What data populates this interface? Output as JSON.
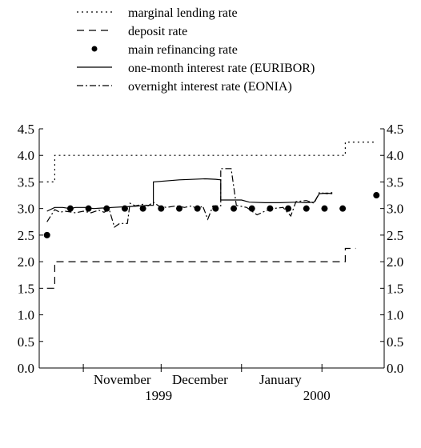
{
  "chart_data": {
    "type": "line",
    "title": "",
    "xlabel": "",
    "ylabel": "",
    "ylim": [
      0,
      4.5
    ],
    "yticks": [
      "0.0",
      "0.5",
      "1.0",
      "1.5",
      "2.0",
      "2.5",
      "3.0",
      "3.5",
      "4.0",
      "4.5"
    ],
    "y_axis_both_sides": true,
    "grid": false,
    "legend_position": "top-left",
    "x_start": "1999-10-15",
    "x_end": "2000-02-25",
    "month_labels": [
      {
        "label": "November",
        "date": "1999-11-16"
      },
      {
        "label": "December",
        "date": "1999-12-16"
      },
      {
        "label": "January",
        "date": "2000-01-16"
      }
    ],
    "month_boundaries": [
      "1999-11-01",
      "1999-12-01",
      "2000-01-01",
      "2000-02-01"
    ],
    "year_labels": [
      {
        "label": "1999",
        "date": "1999-11-30"
      },
      {
        "label": "2000",
        "date": "2000-01-30"
      }
    ],
    "legend": [
      {
        "key": "marginal",
        "label": "marginal lending rate"
      },
      {
        "key": "deposit",
        "label": "deposit rate"
      },
      {
        "key": "mro",
        "label": "main refinancing rate"
      },
      {
        "key": "euribor",
        "label": "one-month interest rate (EURIBOR)"
      },
      {
        "key": "eonia",
        "label": "overnight interest rate (EONIA)"
      }
    ],
    "series": [
      {
        "key": "marginal",
        "style": "dotted",
        "points": [
          [
            "1999-10-18",
            3.5
          ],
          [
            "1999-10-21",
            3.5
          ],
          [
            "1999-10-21",
            4.0
          ],
          [
            "2000-02-10",
            4.0
          ],
          [
            "2000-02-10",
            4.25
          ],
          [
            "2000-02-21",
            4.25
          ]
        ]
      },
      {
        "key": "deposit",
        "style": "dashed",
        "points": [
          [
            "1999-10-18",
            1.5
          ],
          [
            "1999-10-21",
            1.5
          ],
          [
            "1999-10-21",
            2.0
          ],
          [
            "2000-02-10",
            2.0
          ],
          [
            "2000-02-10",
            2.25
          ],
          [
            "2000-02-14",
            2.25
          ]
        ]
      },
      {
        "key": "euribor",
        "style": "solid",
        "points": [
          [
            "1999-10-18",
            2.95
          ],
          [
            "1999-10-21",
            3.02
          ],
          [
            "1999-10-24",
            3.02
          ],
          [
            "1999-10-27",
            3.0
          ],
          [
            "1999-10-29",
            3.02
          ],
          [
            "1999-11-02",
            3.02
          ],
          [
            "1999-11-05",
            3.0
          ],
          [
            "1999-11-12",
            3.02
          ],
          [
            "1999-11-20",
            3.04
          ],
          [
            "1999-11-26",
            3.06
          ],
          [
            "1999-11-28",
            3.06
          ],
          [
            "1999-11-28",
            3.5
          ],
          [
            "1999-12-08",
            3.54
          ],
          [
            "1999-12-18",
            3.56
          ],
          [
            "1999-12-22",
            3.55
          ],
          [
            "1999-12-24",
            3.54
          ],
          [
            "1999-12-24",
            3.16
          ],
          [
            "2000-01-01",
            3.16
          ],
          [
            "2000-01-04",
            3.12
          ],
          [
            "2000-01-10",
            3.11
          ],
          [
            "2000-01-16",
            3.11
          ],
          [
            "2000-01-22",
            3.12
          ],
          [
            "2000-01-26",
            3.11
          ],
          [
            "2000-01-29",
            3.12
          ],
          [
            "2000-01-31",
            3.28
          ],
          [
            "2000-02-03",
            3.29
          ],
          [
            "2000-02-05",
            3.28
          ]
        ]
      },
      {
        "key": "eonia",
        "style": "dashdot",
        "points": [
          [
            "1999-10-18",
            2.75
          ],
          [
            "1999-10-21",
            2.98
          ],
          [
            "1999-10-23",
            2.93
          ],
          [
            "1999-10-25",
            2.95
          ],
          [
            "1999-10-29",
            2.92
          ],
          [
            "1999-11-01",
            2.95
          ],
          [
            "1999-11-04",
            2.92
          ],
          [
            "1999-11-07",
            2.97
          ],
          [
            "1999-11-09",
            2.93
          ],
          [
            "1999-11-11",
            2.98
          ],
          [
            "1999-11-13",
            2.65
          ],
          [
            "1999-11-15",
            2.72
          ],
          [
            "1999-11-18",
            2.72
          ],
          [
            "1999-11-19",
            3.1
          ],
          [
            "1999-11-21",
            3.05
          ],
          [
            "1999-11-24",
            3.08
          ],
          [
            "1999-11-26",
            3.05
          ],
          [
            "1999-11-28",
            3.12
          ],
          [
            "1999-11-30",
            3.05
          ],
          [
            "1999-12-03",
            3.02
          ],
          [
            "1999-12-07",
            3.05
          ],
          [
            "1999-12-10",
            3.02
          ],
          [
            "1999-12-13",
            3.05
          ],
          [
            "1999-12-15",
            2.98
          ],
          [
            "1999-12-17",
            3.05
          ],
          [
            "1999-12-19",
            2.8
          ],
          [
            "1999-12-21",
            3.05
          ],
          [
            "1999-12-24",
            3.05
          ],
          [
            "1999-12-24",
            3.75
          ],
          [
            "1999-12-28",
            3.75
          ],
          [
            "1999-12-30",
            3.06
          ],
          [
            "2000-01-03",
            3.02
          ],
          [
            "2000-01-05",
            2.95
          ],
          [
            "2000-01-07",
            2.88
          ],
          [
            "2000-01-10",
            2.95
          ],
          [
            "2000-01-13",
            3.0
          ],
          [
            "2000-01-17",
            3.02
          ],
          [
            "2000-01-20",
            2.86
          ],
          [
            "2000-01-22",
            3.13
          ],
          [
            "2000-01-26",
            3.15
          ],
          [
            "2000-01-29",
            3.1
          ],
          [
            "2000-01-31",
            3.3
          ],
          [
            "2000-02-03",
            3.28
          ],
          [
            "2000-02-05",
            3.3
          ]
        ]
      },
      {
        "key": "mro",
        "style": "dots",
        "points": [
          [
            "1999-10-18",
            2.5
          ],
          [
            "1999-10-27",
            3.0
          ],
          [
            "1999-11-03",
            3.0
          ],
          [
            "1999-11-10",
            3.0
          ],
          [
            "1999-11-17",
            3.0
          ],
          [
            "1999-11-24",
            3.0
          ],
          [
            "1999-12-01",
            3.0
          ],
          [
            "1999-12-08",
            3.0
          ],
          [
            "1999-12-15",
            3.0
          ],
          [
            "1999-12-22",
            3.0
          ],
          [
            "1999-12-29",
            3.0
          ],
          [
            "2000-01-05",
            3.0
          ],
          [
            "2000-01-12",
            3.0
          ],
          [
            "2000-01-19",
            3.0
          ],
          [
            "2000-01-26",
            3.0
          ],
          [
            "2000-02-02",
            3.0
          ],
          [
            "2000-02-09",
            3.0
          ],
          [
            "2000-02-22",
            3.25
          ]
        ]
      }
    ]
  }
}
